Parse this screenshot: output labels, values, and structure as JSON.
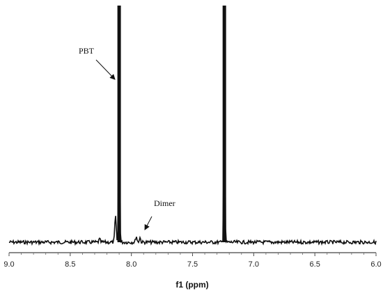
{
  "chart_data": {
    "type": "line",
    "title": "",
    "xlabel": "f1 (ppm)",
    "ylabel": "",
    "xlim": [
      9.0,
      6.0
    ],
    "x_reversed": true,
    "x_ticks": [
      "9.0",
      "8.5",
      "8.0",
      "7.5",
      "7.0",
      "6.5",
      "6.0"
    ],
    "grid": false,
    "legend": "none",
    "line_color": "#111111",
    "series": [
      {
        "peaks": [
          {
            "x": 8.1,
            "height": 1.0
          },
          {
            "x": 7.24,
            "height": 1.0
          },
          {
            "x": 8.13,
            "height": 0.11
          },
          {
            "x": 7.96,
            "height": 0.025
          },
          {
            "x": 7.93,
            "height": 0.02
          },
          {
            "x": 8.26,
            "height": 0.012
          }
        ]
      }
    ],
    "annotations": [
      {
        "text": "PBT",
        "x": 8.12,
        "height": 0.69
      },
      {
        "text": "Dimer",
        "x": 7.95,
        "height": 0.04
      }
    ]
  }
}
